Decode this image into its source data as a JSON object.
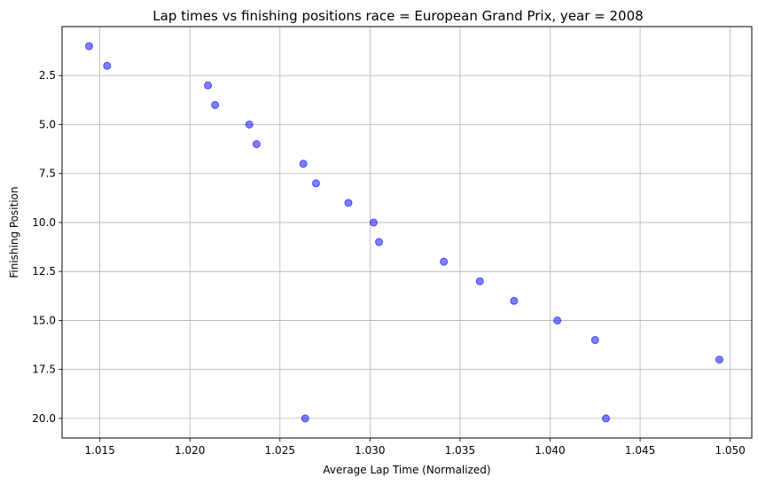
{
  "chart_data": {
    "type": "scatter",
    "title": "Lap times vs finishing positions race = European Grand Prix, year = 2008",
    "xlabel": "Average Lap Time (Normalized)",
    "ylabel": "Finishing Position",
    "xlim": [
      1.0129,
      1.0512
    ],
    "ylim": [
      21.0,
      0.0
    ],
    "y_inverted": true,
    "grid": true,
    "x_ticks": [
      "1.015",
      "1.020",
      "1.025",
      "1.030",
      "1.035",
      "1.040",
      "1.045",
      "1.050"
    ],
    "x_tick_values": [
      1.015,
      1.02,
      1.025,
      1.03,
      1.035,
      1.04,
      1.045,
      1.05
    ],
    "y_ticks": [
      "2.5",
      "5.0",
      "7.5",
      "10.0",
      "12.5",
      "15.0",
      "17.5",
      "20.0"
    ],
    "y_tick_values": [
      2.5,
      5.0,
      7.5,
      10.0,
      12.5,
      15.0,
      17.5,
      20.0
    ],
    "marker_color": "#0000ff",
    "points": [
      {
        "x": 1.0144,
        "y": 1
      },
      {
        "x": 1.0154,
        "y": 2
      },
      {
        "x": 1.021,
        "y": 3
      },
      {
        "x": 1.0214,
        "y": 4
      },
      {
        "x": 1.0233,
        "y": 5
      },
      {
        "x": 1.0237,
        "y": 6
      },
      {
        "x": 1.0263,
        "y": 7
      },
      {
        "x": 1.027,
        "y": 8
      },
      {
        "x": 1.0288,
        "y": 9
      },
      {
        "x": 1.0302,
        "y": 10
      },
      {
        "x": 1.0305,
        "y": 11
      },
      {
        "x": 1.0341,
        "y": 12
      },
      {
        "x": 1.0361,
        "y": 13
      },
      {
        "x": 1.038,
        "y": 14
      },
      {
        "x": 1.0404,
        "y": 15
      },
      {
        "x": 1.0425,
        "y": 16
      },
      {
        "x": 1.0494,
        "y": 17
      },
      {
        "x": 1.0264,
        "y": 20
      },
      {
        "x": 1.0431,
        "y": 20
      }
    ]
  }
}
